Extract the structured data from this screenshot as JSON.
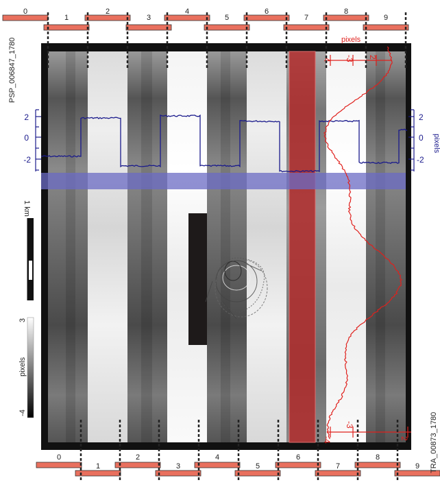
{
  "top_image_id": "PSP_006847_1780",
  "bottom_image_id": "TRA_00873_1780",
  "top_ccds": [
    "0",
    "1",
    "2",
    "3",
    "4",
    "5",
    "6",
    "7",
    "8",
    "9"
  ],
  "bottom_ccds": [
    "0",
    "1",
    "2",
    "3",
    "4",
    "5",
    "6",
    "7",
    "8",
    "9"
  ],
  "left_profile": {
    "ticks": [
      "2",
      "0",
      "-2"
    ]
  },
  "right_profile": {
    "ticks": [
      "2",
      "0",
      "-2"
    ],
    "unit": "pixels"
  },
  "red_profile": {
    "unit": "pixels",
    "top_ticks": [
      "-4",
      "-3",
      "2"
    ],
    "bottom_ticks": [
      "-4",
      "-3",
      "2"
    ]
  },
  "scale_bar": {
    "label": "1 km"
  },
  "colorbar": {
    "max": "3",
    "min": "-4",
    "label": "pixels"
  },
  "colors": {
    "ccd_fill": "#e9705e",
    "blue_profile": "#1a1a8c",
    "red_profile": "#e0201c",
    "blue_band": "#7c7cc4",
    "red_band": "#b02a2a"
  },
  "blue_profile_levels": [
    -1.8,
    1.8,
    -2.7,
    2.0,
    -2.7,
    1.5,
    -3.2,
    1.5,
    -2.4,
    0.7
  ]
}
